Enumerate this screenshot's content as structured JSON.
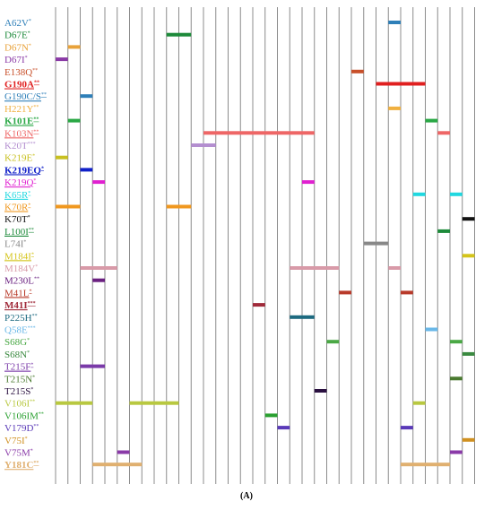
{
  "caption": "(A)",
  "rows": [
    {
      "label": "A62V",
      "sup": "*",
      "color": "#2e7fb8",
      "underline": false,
      "bold": false,
      "bars": [
        [
          27,
          28
        ]
      ]
    },
    {
      "label": "D67E",
      "sup": "*",
      "color": "#1d8a3a",
      "underline": false,
      "bold": false,
      "bars": [
        [
          9,
          11
        ]
      ]
    },
    {
      "label": "D67N",
      "sup": "*",
      "color": "#e8a23a",
      "underline": false,
      "bold": false,
      "bars": [
        [
          1,
          2
        ]
      ]
    },
    {
      "label": "D67I",
      "sup": "*",
      "color": "#8a3aa6",
      "underline": false,
      "bold": false,
      "bars": [
        [
          0,
          1
        ]
      ]
    },
    {
      "label": "E138Q",
      "sup": "**",
      "color": "#c8502a",
      "underline": false,
      "bold": false,
      "bars": [
        [
          24,
          25
        ]
      ]
    },
    {
      "label": "G190A",
      "sup": "**",
      "color": "#e02020",
      "underline": true,
      "bold": true,
      "bars": [
        [
          26,
          30
        ]
      ]
    },
    {
      "label": "G190C/S",
      "sup": "**",
      "color": "#2e7fb8",
      "underline": true,
      "bold": false,
      "bars": [
        [
          2,
          3
        ]
      ]
    },
    {
      "label": "H221Y",
      "sup": "**",
      "color": "#f0b040",
      "underline": false,
      "bold": false,
      "bars": [
        [
          27,
          28
        ]
      ]
    },
    {
      "label": "K101E",
      "sup": "**",
      "color": "#2aa845",
      "underline": true,
      "bold": true,
      "bars": [
        [
          1,
          2
        ],
        [
          30,
          31
        ]
      ]
    },
    {
      "label": "K103N",
      "sup": "**",
      "color": "#ee6666",
      "underline": true,
      "bold": false,
      "bars": [
        [
          12,
          21
        ],
        [
          31,
          32
        ]
      ]
    },
    {
      "label": "K20T",
      "sup": "***",
      "color": "#b48fd0",
      "underline": false,
      "bold": false,
      "bars": [
        [
          11,
          13
        ]
      ]
    },
    {
      "label": "K219E",
      "sup": "*",
      "color": "#c8c020",
      "underline": false,
      "bold": false,
      "bars": [
        [
          0,
          1
        ]
      ]
    },
    {
      "label": "K219EQ",
      "sup": "*",
      "color": "#1020c8",
      "underline": true,
      "bold": true,
      "bars": [
        [
          2,
          3
        ]
      ]
    },
    {
      "label": "K219Q",
      "sup": "*",
      "color": "#e020d0",
      "underline": true,
      "bold": false,
      "bars": [
        [
          3,
          4
        ],
        [
          20,
          21
        ]
      ]
    },
    {
      "label": "K65R",
      "sup": "*",
      "color": "#20d8e0",
      "underline": true,
      "bold": false,
      "bars": [
        [
          29,
          30
        ],
        [
          32,
          33
        ]
      ]
    },
    {
      "label": "K70R",
      "sup": "*",
      "color": "#f09820",
      "underline": true,
      "bold": false,
      "bars": [
        [
          0,
          2
        ],
        [
          9,
          11
        ]
      ]
    },
    {
      "label": "K70T",
      "sup": "*",
      "color": "#111111",
      "underline": false,
      "bold": false,
      "bars": [
        [
          33,
          34
        ]
      ]
    },
    {
      "label": "L100I",
      "sup": "**",
      "color": "#1d8a3a",
      "underline": true,
      "bold": false,
      "bars": [
        [
          31,
          32
        ]
      ]
    },
    {
      "label": "L74I",
      "sup": "*",
      "color": "#888888",
      "underline": false,
      "bold": false,
      "bars": [
        [
          25,
          27
        ]
      ]
    },
    {
      "label": "M184I",
      "sup": "*",
      "color": "#d4c41a",
      "underline": true,
      "bold": false,
      "bars": [
        [
          33,
          34
        ]
      ]
    },
    {
      "label": "M184V",
      "sup": "*",
      "color": "#d89aa8",
      "underline": false,
      "bold": false,
      "bars": [
        [
          2,
          5
        ],
        [
          19,
          23
        ],
        [
          27,
          28
        ]
      ]
    },
    {
      "label": "M230L",
      "sup": "**",
      "color": "#6a2080",
      "underline": false,
      "bold": false,
      "bars": [
        [
          3,
          4
        ]
      ]
    },
    {
      "label": "M41L",
      "sup": "*",
      "color": "#b83a2a",
      "underline": true,
      "bold": false,
      "bars": [
        [
          23,
          24
        ],
        [
          28,
          29
        ]
      ]
    },
    {
      "label": "M41I",
      "sup": "***",
      "color": "#a02a3a",
      "underline": true,
      "bold": true,
      "bars": [
        [
          16,
          17
        ]
      ]
    },
    {
      "label": "P225H",
      "sup": "**",
      "color": "#1d6a80",
      "underline": false,
      "bold": false,
      "bars": [
        [
          19,
          21
        ]
      ]
    },
    {
      "label": "Q58E",
      "sup": "***",
      "color": "#6ab8e8",
      "underline": false,
      "bold": false,
      "bars": [
        [
          30,
          31
        ]
      ]
    },
    {
      "label": "S68G",
      "sup": "*",
      "color": "#4aa845",
      "underline": false,
      "bold": false,
      "bars": [
        [
          22,
          23
        ],
        [
          32,
          33
        ]
      ]
    },
    {
      "label": "S68N",
      "sup": "*",
      "color": "#3a8a40",
      "underline": false,
      "bold": false,
      "bars": [
        [
          33,
          34
        ]
      ]
    },
    {
      "label": "T215F",
      "sup": "*",
      "color": "#7a3aa8",
      "underline": true,
      "bold": false,
      "bars": [
        [
          2,
          4
        ]
      ]
    },
    {
      "label": "T215N",
      "sup": "*",
      "color": "#4a7a30",
      "underline": false,
      "bold": false,
      "bars": [
        [
          32,
          33
        ]
      ]
    },
    {
      "label": "T215S",
      "sup": "*",
      "color": "#2a1040",
      "underline": false,
      "bold": false,
      "bars": [
        [
          21,
          22
        ]
      ]
    },
    {
      "label": "V106I",
      "sup": "**",
      "color": "#b8c840",
      "underline": false,
      "bold": false,
      "bars": [
        [
          0,
          3
        ],
        [
          6,
          10
        ],
        [
          29,
          30
        ]
      ]
    },
    {
      "label": "V106IM",
      "sup": "**",
      "color": "#2aa030",
      "underline": false,
      "bold": false,
      "bars": [
        [
          17,
          18
        ]
      ]
    },
    {
      "label": "V179D",
      "sup": "**",
      "color": "#5a3ab8",
      "underline": false,
      "bold": false,
      "bars": [
        [
          18,
          19
        ],
        [
          28,
          29
        ]
      ]
    },
    {
      "label": "V75I",
      "sup": "*",
      "color": "#d09020",
      "underline": false,
      "bold": false,
      "bars": [
        [
          33,
          34
        ]
      ]
    },
    {
      "label": "V75M",
      "sup": "*",
      "color": "#8a3aa8",
      "underline": false,
      "bold": false,
      "bars": [
        [
          5,
          6
        ],
        [
          32,
          33
        ]
      ]
    },
    {
      "label": "Y181C",
      "sup": "**",
      "color": "#e0b070",
      "underline": true,
      "bold": true,
      "bars": [
        [
          3,
          7
        ],
        [
          28,
          32
        ]
      ]
    }
  ]
}
